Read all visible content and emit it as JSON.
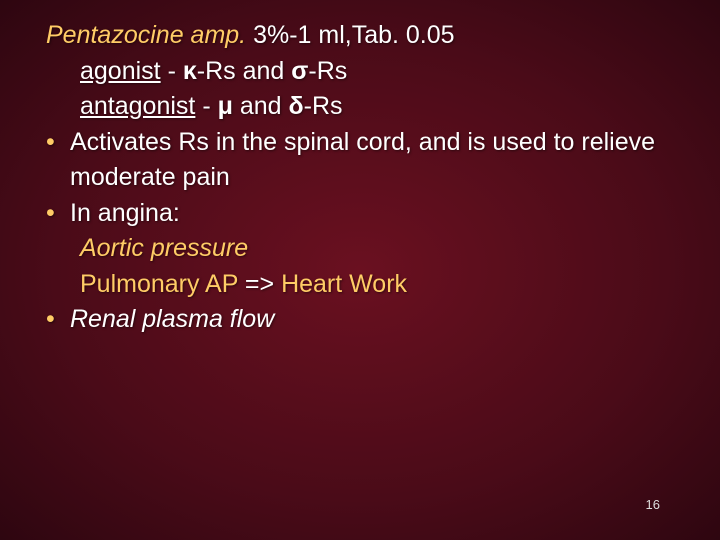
{
  "line1": {
    "part1": "Pentazocine amp.",
    "part2": " 3%-1 ml,Tab. 0.05"
  },
  "line2": {
    "agonist": "agonist",
    "dash1": " - ",
    "kappa": "κ",
    "rs1": "-Rs and ",
    "sigma": "σ",
    "rs2": "-Rs"
  },
  "line3": {
    "antagonist": "antagonist",
    "dash1": " - ",
    "mu": "μ",
    "and": " and ",
    "delta": "δ",
    "rs": "-Rs"
  },
  "line4": "Activates Rs in the spinal cord, and is used to relieve moderate pain",
  "line5": "In angina:",
  "line6": {
    "box": "🡅",
    "text": "Aortic pressure"
  },
  "line7": {
    "box1": "🡅",
    "text1": "Pulmonary AP",
    "arrow": " => ",
    "box2": "🡅",
    "text2": "Heart Work"
  },
  "line8": {
    "box": "🡅",
    "text": "Renal plasma flow"
  },
  "pagenum": "16",
  "colors": {
    "accent": "#ffcc66",
    "text": "#ffffff",
    "bg_center": "#6a1020",
    "bg_edge": "#2e0610"
  }
}
